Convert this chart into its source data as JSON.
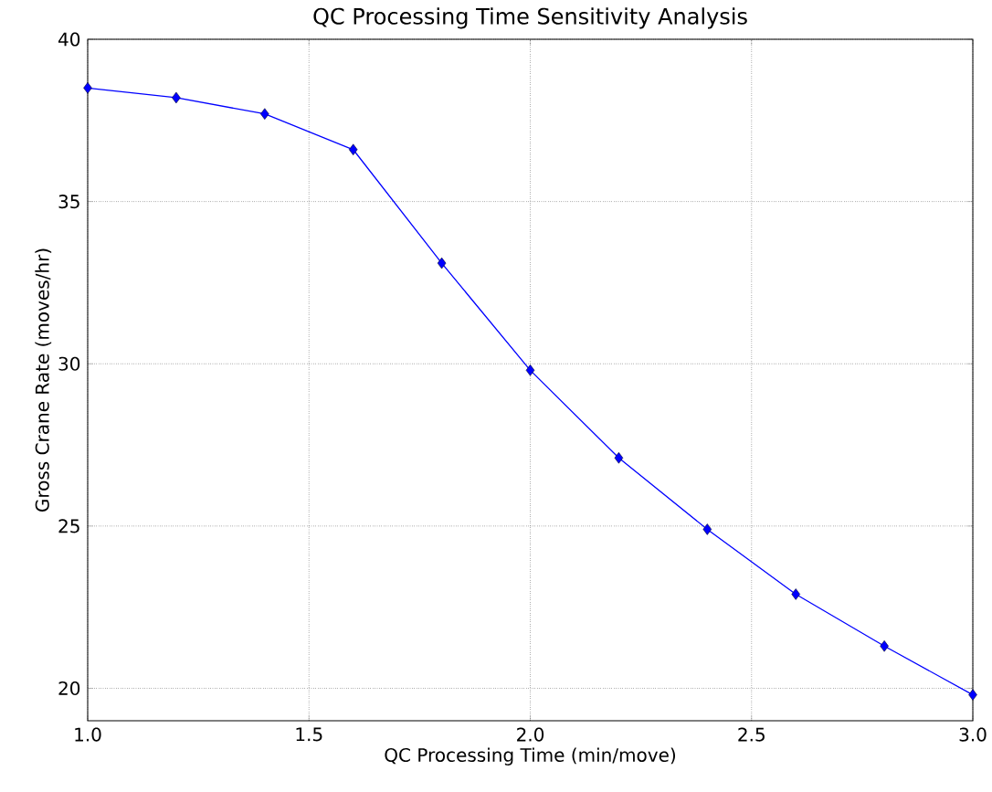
{
  "chart_data": {
    "type": "line",
    "title": "QC Processing Time Sensitivity Analysis",
    "xlabel": "QC Processing Time (min/move)",
    "ylabel": "Gross Crane Rate (moves/hr)",
    "x": [
      1.0,
      1.2,
      1.4,
      1.6,
      1.8,
      2.0,
      2.2,
      2.4,
      2.6,
      2.8,
      3.0
    ],
    "series": [
      {
        "color": "#0000ff",
        "values": [
          38.5,
          38.2,
          37.7,
          36.6,
          33.1,
          29.8,
          27.1,
          24.9,
          22.9,
          21.3,
          19.8
        ]
      }
    ],
    "xlim": [
      1.0,
      3.0
    ],
    "ylim": [
      19,
      40
    ],
    "xticks": [
      {
        "value": 1.0,
        "label": "1.0"
      },
      {
        "value": 1.5,
        "label": "1.5"
      },
      {
        "value": 2.0,
        "label": "2.0"
      },
      {
        "value": 2.5,
        "label": "2.5"
      },
      {
        "value": 3.0,
        "label": "3.0"
      }
    ],
    "yticks": [
      20,
      25,
      30,
      35,
      40
    ],
    "grid": true,
    "marker": "diamond",
    "line_style": "solid"
  }
}
